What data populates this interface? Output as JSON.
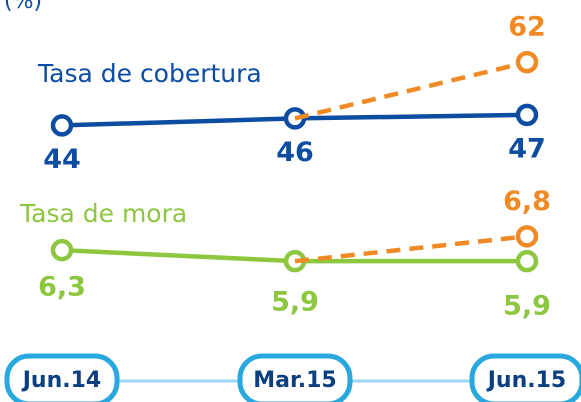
{
  "chart_data": [
    {
      "type": "line",
      "ylabel": "(%)",
      "categories": [
        "Jun.14",
        "Mar.15",
        "Jun.15"
      ],
      "ylim": [
        37,
        74
      ],
      "series": [
        {
          "name": "Tasa de cobertura",
          "color": "#0c4da2",
          "values": [
            44,
            46,
            47
          ]
        },
        {
          "color": "#f08a24",
          "dashed": true,
          "values": [
            null,
            46,
            62
          ]
        }
      ]
    },
    {
      "type": "line",
      "ylim": [
        5,
        10
      ],
      "series": [
        {
          "name": "Tasa de mora",
          "color": "#8dc63f",
          "values": [
            6.3,
            5.9,
            5.9
          ],
          "value_labels": [
            "6,3",
            "5,9",
            "5,9"
          ]
        },
        {
          "color": "#f08a24",
          "dashed": true,
          "values": [
            null,
            5.9,
            6.8
          ],
          "value_labels": [
            null,
            null,
            "6,8"
          ]
        }
      ]
    }
  ]
}
